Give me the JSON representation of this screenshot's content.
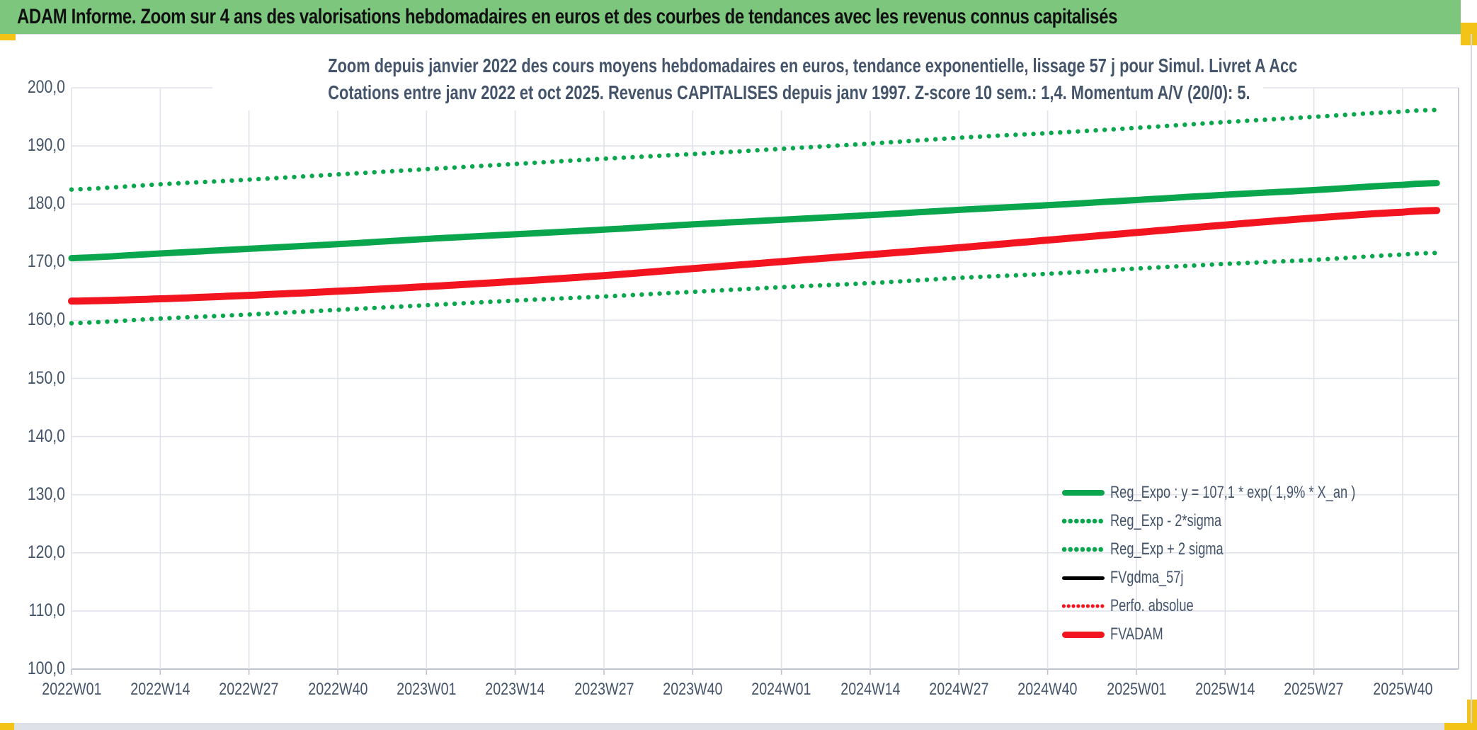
{
  "window": {
    "header_title": "ADAM Informe. Zoom sur 4 ans des valorisations hebdomadaires en euros et des courbes de tendances avec les revenus connus capitalisés",
    "colors": {
      "header_bg": "#7cc67e",
      "accent_yellow": "#f3c317",
      "title_text": "#44546a",
      "grid": "#e0e3eb",
      "axis_line": "#bdc3ce",
      "green": "#0aa64d",
      "red": "#f2151f",
      "black": "#000000"
    }
  },
  "chart_data": {
    "type": "line",
    "title_line1": "Zoom depuis janvier 2022 des cours moyens hebdomadaires en euros, tendance exponentielle, lissage 57 j pour Simul. Livret A Acc",
    "title_line2": "Cotations entre janv 2022 et oct 2025. Revenus CAPITALISES depuis janv 1997. Z-score 10 sem.: 1,4. Momentum A/V (20/0): 5.",
    "x_tick_labels": [
      "2022W01",
      "2022W14",
      "2022W27",
      "2022W40",
      "2023W01",
      "2023W14",
      "2023W27",
      "2023W40",
      "2024W01",
      "2024W14",
      "2024W27",
      "2024W40",
      "2025W01",
      "2025W14",
      "2025W27",
      "2025W40"
    ],
    "y_tick_labels": [
      "200,0",
      "190,0",
      "180,0",
      "170,0",
      "160,0",
      "150,0",
      "140,0",
      "130,0",
      "120,0",
      "110,0",
      "100,0"
    ],
    "y_axis": {
      "min": 100,
      "max": 200,
      "step": 10
    },
    "x_axis": {
      "weeks_per_tick": 13,
      "n_weeks": 200,
      "grid": true
    },
    "legend_position": "bottom-right-inside",
    "series": [
      {
        "name": "Reg_Expo : y = 107,1 * exp( 1,9% *  X_an )",
        "color": "#0aa64d",
        "style": "solid",
        "width": 9,
        "tick_values": [
          170.7,
          171.5,
          172.3,
          173.1,
          174.0,
          174.8,
          175.6,
          176.5,
          177.3,
          178.1,
          179.0,
          179.8,
          180.7,
          181.6,
          182.4,
          183.3
        ],
        "end_value": 183.6
      },
      {
        "name": "Reg_Exp - 2*sigma",
        "color": "#0aa64d",
        "style": "dotted",
        "width": 6.4,
        "tick_values": [
          159.5,
          160.3,
          161.0,
          161.8,
          162.6,
          163.4,
          164.1,
          164.9,
          165.7,
          166.4,
          167.3,
          168.0,
          168.9,
          169.7,
          170.4,
          171.3
        ],
        "end_value": 171.6
      },
      {
        "name": "Reg_Exp + 2 sigma",
        "color": "#0aa64d",
        "style": "dotted",
        "width": 6.4,
        "tick_values": [
          182.5,
          183.4,
          184.2,
          185.1,
          186.0,
          186.9,
          187.8,
          188.6,
          189.5,
          190.4,
          191.4,
          192.2,
          193.1,
          194.1,
          195.0,
          195.9
        ],
        "end_value": 196.2
      },
      {
        "name": "FVgdma_57j",
        "color": "#000000",
        "style": "solid",
        "width": 5,
        "values_same_as": "FVADAM",
        "note": "hidden behind FVADAM in the rendered chart"
      },
      {
        "name": "Perfo. absolue",
        "color": "#f2151f",
        "style": "dotted",
        "width": 5,
        "values_same_as": "FVADAM",
        "note": "hidden behind FVADAM in the rendered chart"
      },
      {
        "name": "FVADAM",
        "color": "#f2151f",
        "style": "solid",
        "width": 10,
        "tick_values": [
          163.3,
          163.7,
          164.3,
          165.0,
          165.8,
          166.7,
          167.7,
          168.9,
          170.1,
          171.3,
          172.5,
          173.8,
          175.1,
          176.4,
          177.6,
          178.6
        ],
        "end_value": 178.9
      }
    ]
  }
}
